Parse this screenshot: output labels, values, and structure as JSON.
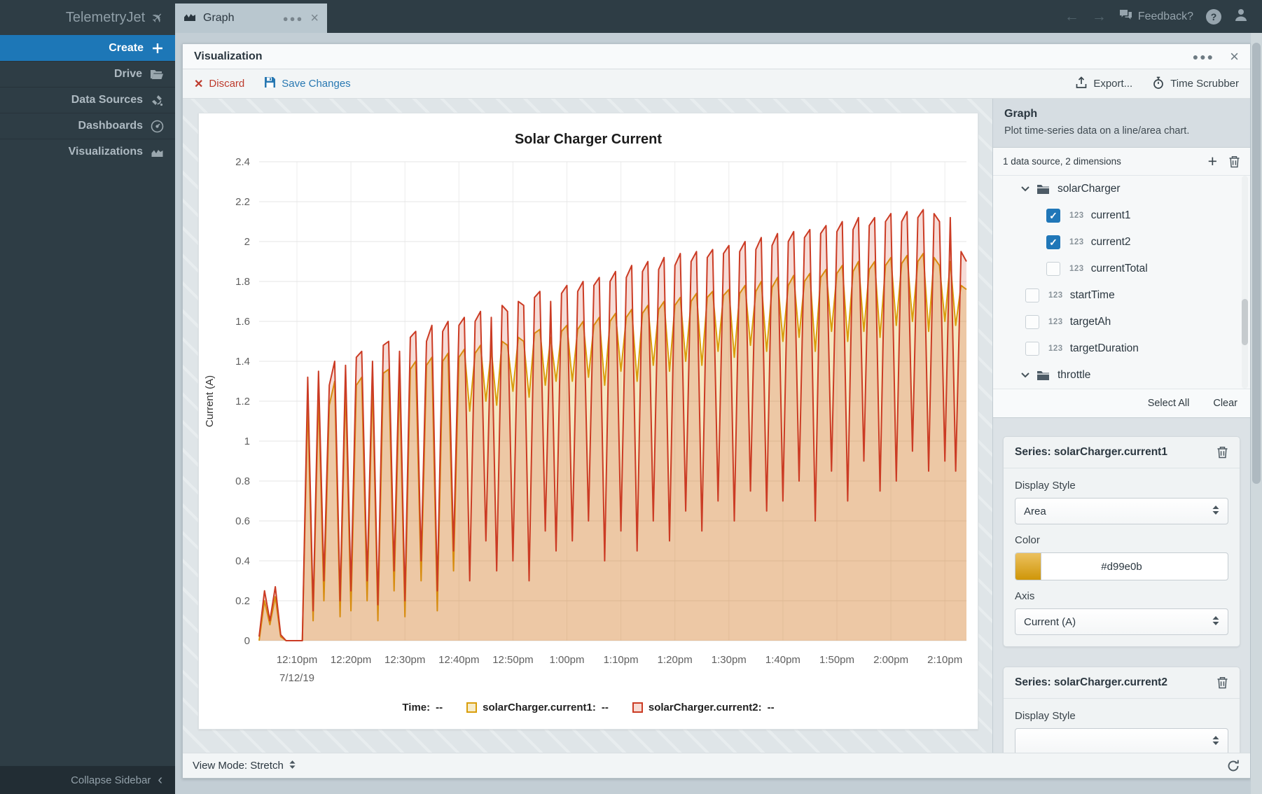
{
  "sidebar": {
    "logo": "TelemetryJet",
    "items": [
      {
        "label": "Create",
        "icon": "plus-icon",
        "active": true
      },
      {
        "label": "Drive",
        "icon": "folder-open-icon",
        "active": false
      },
      {
        "label": "Data Sources",
        "icon": "satellite-icon",
        "active": false
      },
      {
        "label": "Dashboards",
        "icon": "gauge-icon",
        "active": false
      },
      {
        "label": "Visualizations",
        "icon": "area-chart-icon",
        "active": false
      }
    ],
    "collapse_label": "Collapse Sidebar"
  },
  "topbar": {
    "tab_label": "Graph",
    "feedback_label": "Feedback?",
    "help_label": "?"
  },
  "panel": {
    "title": "Visualization",
    "toolbar": {
      "discard_label": "Discard",
      "save_label": "Save Changes",
      "export_label": "Export...",
      "time_scrubber_label": "Time Scrubber"
    },
    "bottombar": {
      "view_mode_label": "View Mode: Stretch"
    }
  },
  "right_panel": {
    "title": "Graph",
    "description": "Plot time-series data on a line/area chart.",
    "datasource_summary": "1 data source, 2 dimensions",
    "tree": [
      {
        "kind": "folder",
        "label": "solarCharger",
        "level": 0,
        "expanded": true
      },
      {
        "kind": "field",
        "label": "current1",
        "level": 1,
        "checked": true
      },
      {
        "kind": "field",
        "label": "current2",
        "level": 1,
        "checked": true
      },
      {
        "kind": "field",
        "label": "currentTotal",
        "level": 1,
        "checked": false
      },
      {
        "kind": "field",
        "label": "startTime",
        "level": 0,
        "checked": false
      },
      {
        "kind": "field",
        "label": "targetAh",
        "level": 0,
        "checked": false
      },
      {
        "kind": "field",
        "label": "targetDuration",
        "level": 0,
        "checked": false
      },
      {
        "kind": "folder",
        "label": "throttle",
        "level": 0,
        "expanded": true
      }
    ],
    "select_all_label": "Select All",
    "clear_label": "Clear",
    "series_cards": [
      {
        "title": "Series: solarCharger.current1",
        "display_style_label": "Display Style",
        "display_style_value": "Area",
        "color_label": "Color",
        "color_value": "#d99e0b",
        "axis_label": "Axis",
        "axis_value": "Current (A)"
      },
      {
        "title": "Series: solarCharger.current2",
        "display_style_label": "Display Style"
      }
    ]
  },
  "chart_data": {
    "type": "area",
    "title": "Solar Charger Current",
    "xlabel": "",
    "ylabel": "Current (A)",
    "ylim": [
      0,
      2.4
    ],
    "grid": true,
    "legend_position": "bottom",
    "y_ticks": [
      "0",
      "0.2",
      "0.4",
      "0.6",
      "0.8",
      "1",
      "1.2",
      "1.4",
      "1.6",
      "1.8",
      "2",
      "2.2",
      "2.4"
    ],
    "x_ticks": [
      {
        "minute": 10,
        "label": "12:10pm",
        "date": "7/12/19"
      },
      {
        "minute": 20,
        "label": "12:20pm"
      },
      {
        "minute": 30,
        "label": "12:30pm"
      },
      {
        "minute": 40,
        "label": "12:40pm"
      },
      {
        "minute": 50,
        "label": "12:50pm"
      },
      {
        "minute": 60,
        "label": "1:00pm"
      },
      {
        "minute": 70,
        "label": "1:10pm"
      },
      {
        "minute": 80,
        "label": "1:20pm"
      },
      {
        "minute": 90,
        "label": "1:30pm"
      },
      {
        "minute": 100,
        "label": "1:40pm"
      },
      {
        "minute": 110,
        "label": "1:50pm"
      },
      {
        "minute": 120,
        "label": "2:00pm"
      },
      {
        "minute": 130,
        "label": "2:10pm"
      }
    ],
    "x_start_min": 3,
    "x_step_min": 1,
    "legend": {
      "time_label": "Time:",
      "empty_value": "--"
    },
    "series": [
      {
        "name": "solarCharger.current1",
        "color": "#d99e0b",
        "fill": "rgba(217,158,11,0.25)",
        "legend_fill": "#f6ecca",
        "values": [
          0,
          0.2,
          0.08,
          0.22,
          0.02,
          0,
          0,
          0,
          0,
          1.2,
          0.1,
          1.25,
          0.2,
          1.18,
          1.3,
          0.12,
          1.28,
          0.15,
          1.28,
          1.32,
          0.2,
          1.3,
          0.1,
          1.34,
          1.36,
          0.25,
          1.32,
          0.12,
          1.36,
          1.4,
          0.3,
          1.38,
          1.42,
          0.15,
          1.4,
          1.44,
          0.35,
          1.42,
          1.46,
          1.15,
          1.44,
          1.48,
          1.2,
          1.46,
          1.18,
          1.5,
          1.48,
          1.25,
          1.52,
          1.5,
          1.22,
          1.54,
          1.56,
          1.28,
          1.52,
          1.3,
          1.55,
          1.58,
          1.3,
          1.56,
          1.6,
          1.32,
          1.58,
          1.62,
          1.28,
          1.6,
          1.64,
          1.35,
          1.62,
          1.66,
          1.3,
          1.64,
          1.68,
          1.38,
          1.66,
          1.7,
          1.35,
          1.68,
          1.72,
          1.4,
          1.7,
          1.74,
          1.38,
          1.72,
          1.75,
          1.45,
          1.73,
          1.76,
          1.42,
          1.74,
          1.78,
          1.48,
          1.75,
          1.8,
          1.45,
          1.77,
          1.82,
          1.5,
          1.78,
          1.83,
          1.52,
          1.8,
          1.84,
          1.45,
          1.82,
          1.86,
          1.55,
          1.84,
          1.88,
          1.5,
          1.85,
          1.9,
          1.55,
          1.86,
          1.9,
          1.52,
          1.88,
          1.92,
          1.58,
          1.89,
          1.93,
          1.6,
          1.9,
          1.94,
          1.55,
          1.92,
          1.88,
          1.6,
          1.9,
          1.58,
          1.78,
          1.76
        ]
      },
      {
        "name": "solarCharger.current2",
        "color": "#cb3b24",
        "fill": "rgba(203,59,36,0.18)",
        "legend_fill": "#f8dbd3",
        "values": [
          0.02,
          0.25,
          0.1,
          0.27,
          0.03,
          0,
          0,
          0,
          0,
          1.32,
          0.15,
          1.35,
          0.3,
          1.28,
          1.4,
          0.2,
          1.38,
          0.25,
          1.42,
          1.45,
          0.3,
          1.4,
          0.18,
          1.48,
          1.5,
          0.35,
          1.45,
          0.2,
          1.52,
          1.55,
          0.4,
          1.5,
          1.58,
          0.25,
          1.55,
          1.6,
          0.45,
          1.58,
          1.62,
          0.3,
          1.6,
          1.65,
          0.5,
          1.62,
          0.35,
          1.68,
          1.65,
          0.4,
          1.7,
          1.68,
          0.3,
          1.72,
          1.75,
          0.55,
          1.7,
          0.45,
          1.74,
          1.78,
          0.5,
          1.75,
          1.8,
          0.6,
          1.78,
          1.82,
          0.4,
          1.8,
          1.85,
          0.55,
          1.82,
          1.88,
          0.45,
          1.85,
          1.9,
          0.6,
          1.86,
          1.92,
          0.5,
          1.88,
          1.94,
          0.65,
          1.9,
          1.95,
          0.55,
          1.92,
          1.96,
          0.7,
          1.94,
          1.98,
          0.6,
          1.95,
          2.0,
          0.75,
          1.96,
          2.02,
          0.65,
          1.98,
          2.04,
          0.7,
          2.0,
          2.05,
          0.8,
          2.02,
          2.06,
          0.6,
          2.04,
          2.08,
          0.85,
          2.05,
          2.1,
          0.7,
          2.06,
          2.12,
          0.9,
          2.08,
          2.12,
          0.75,
          2.1,
          2.14,
          0.8,
          2.1,
          2.15,
          0.95,
          2.12,
          2.16,
          0.85,
          2.14,
          2.1,
          0.9,
          2.12,
          0.85,
          1.95,
          1.9
        ]
      }
    ]
  }
}
